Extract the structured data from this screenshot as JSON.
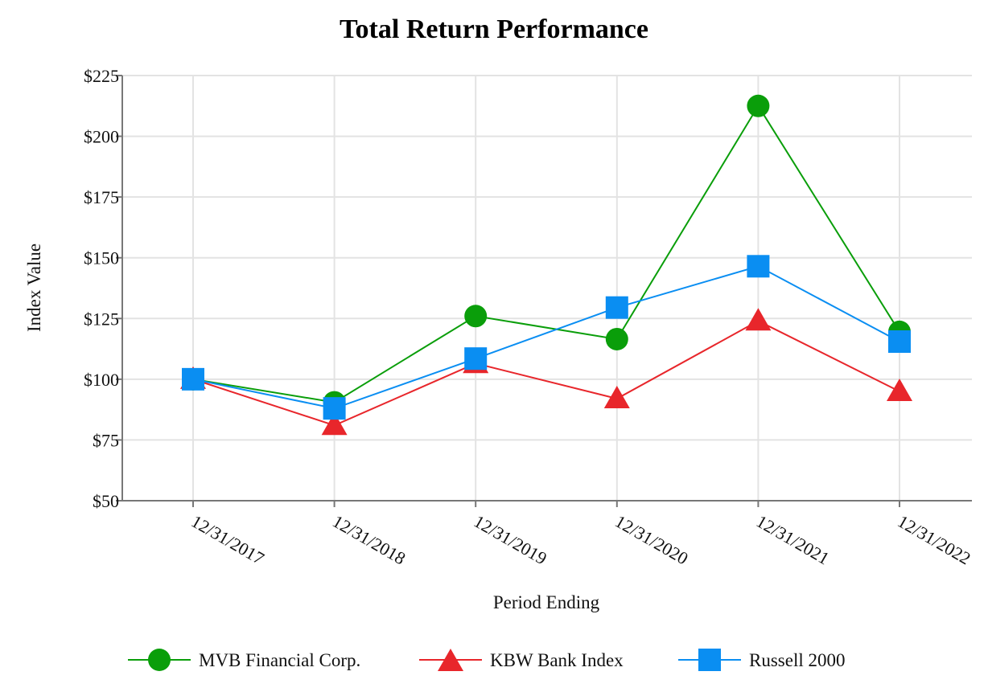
{
  "chart_data": {
    "type": "line",
    "title": "Total Return Performance",
    "xlabel": "Period Ending",
    "ylabel": "Index Value",
    "categories": [
      "12/31/2017",
      "12/31/2018",
      "12/31/2019",
      "12/31/2020",
      "12/31/2021",
      "12/31/2022"
    ],
    "ylim": [
      50,
      225
    ],
    "yticks": [
      50,
      75,
      100,
      125,
      150,
      175,
      200,
      225
    ],
    "ytick_labels": [
      "$50",
      "$75",
      "$100",
      "$125",
      "$150",
      "$175",
      "$200",
      "$225"
    ],
    "grid": true,
    "legend_position": "bottom",
    "series": [
      {
        "name": "MVB Financial Corp.",
        "marker": "circle",
        "color": "#0a9e0a",
        "values": [
          100,
          90.5,
          126,
          116.5,
          212.5,
          119.5
        ]
      },
      {
        "name": "KBW Bank Index",
        "marker": "triangle",
        "color": "#e8262b",
        "values": [
          100,
          81,
          106.5,
          92,
          124,
          95
        ]
      },
      {
        "name": "Russell 2000",
        "marker": "square",
        "color": "#0a8ef2",
        "values": [
          100,
          88,
          108.5,
          129.5,
          146.5,
          115.5
        ]
      }
    ]
  }
}
